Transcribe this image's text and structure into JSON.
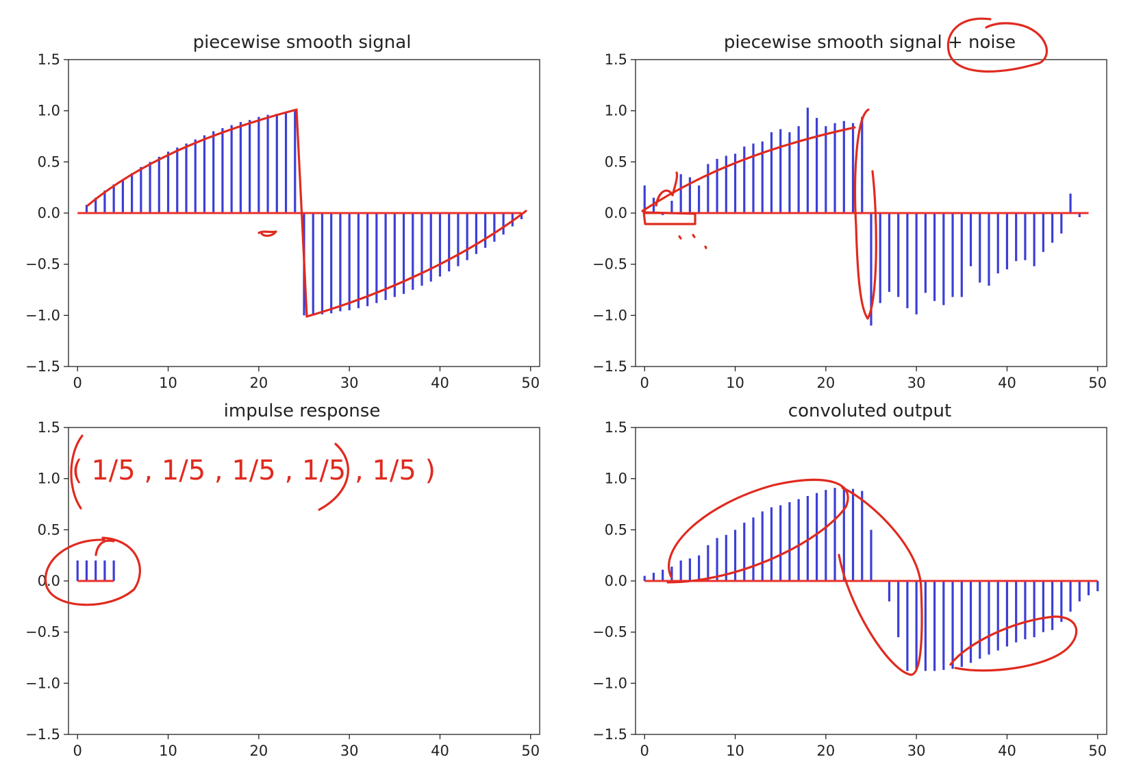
{
  "chart_data": [
    {
      "type": "stem",
      "title": "piecewise smooth signal",
      "xlim": [
        0,
        50
      ],
      "ylim": [
        -1.5,
        1.5
      ],
      "xticks": [
        0,
        10,
        20,
        30,
        40,
        50
      ],
      "yticks": [
        1.5,
        1.0,
        0.5,
        0.0,
        -0.5,
        -1.0,
        -1.5
      ],
      "ytick_labels": [
        "1.5",
        "1.0",
        "0.5",
        "0.0",
        "−0.5",
        "−1.0",
        "−1.5"
      ],
      "x": [
        0,
        1,
        2,
        3,
        4,
        5,
        6,
        7,
        8,
        9,
        10,
        11,
        12,
        13,
        14,
        15,
        16,
        17,
        18,
        19,
        20,
        21,
        22,
        23,
        24,
        25,
        26,
        27,
        28,
        29,
        30,
        31,
        32,
        33,
        34,
        35,
        36,
        37,
        38,
        39,
        40,
        41,
        42,
        43,
        44,
        45,
        46,
        47,
        48,
        49
      ],
      "values": [
        0.0,
        0.08,
        0.15,
        0.22,
        0.28,
        0.33,
        0.39,
        0.45,
        0.5,
        0.55,
        0.6,
        0.64,
        0.68,
        0.72,
        0.76,
        0.8,
        0.83,
        0.86,
        0.89,
        0.91,
        0.94,
        0.96,
        0.97,
        0.99,
        1.0,
        -1.0,
        -1.0,
        -0.99,
        -0.98,
        -0.96,
        -0.95,
        -0.93,
        -0.91,
        -0.88,
        -0.85,
        -0.82,
        -0.79,
        -0.75,
        -0.71,
        -0.67,
        -0.62,
        -0.57,
        -0.52,
        -0.46,
        -0.4,
        -0.34,
        -0.28,
        -0.21,
        -0.13,
        -0.06
      ],
      "annotations": []
    },
    {
      "type": "stem",
      "title": "piecewise smooth signal + noise",
      "xlim": [
        0,
        50
      ],
      "ylim": [
        -1.5,
        1.5
      ],
      "xticks": [
        0,
        10,
        20,
        30,
        40,
        50
      ],
      "yticks": [
        1.5,
        1.0,
        0.5,
        0.0,
        -0.5,
        -1.0,
        -1.5
      ],
      "ytick_labels": [
        "1.5",
        "1.0",
        "0.5",
        "0.0",
        "−0.5",
        "−1.0",
        "−1.5"
      ],
      "x": [
        0,
        1,
        2,
        3,
        4,
        5,
        6,
        7,
        8,
        9,
        10,
        11,
        12,
        13,
        14,
        15,
        16,
        17,
        18,
        19,
        20,
        21,
        22,
        23,
        24,
        25,
        26,
        27,
        28,
        29,
        30,
        31,
        32,
        33,
        34,
        35,
        36,
        37,
        38,
        39,
        40,
        41,
        42,
        43,
        44,
        45,
        46,
        47,
        48,
        49
      ],
      "values": [
        0.27,
        0.15,
        -0.02,
        0.12,
        0.38,
        0.35,
        0.27,
        0.48,
        0.53,
        0.56,
        0.58,
        0.65,
        0.68,
        0.7,
        0.79,
        0.82,
        0.79,
        0.85,
        1.03,
        0.93,
        0.85,
        0.88,
        0.9,
        0.88,
        0.94,
        -1.1,
        -0.88,
        -0.77,
        -0.82,
        -0.93,
        -0.99,
        -0.78,
        -0.86,
        -0.9,
        -0.82,
        -0.82,
        -0.52,
        -0.68,
        -0.71,
        -0.59,
        -0.55,
        -0.47,
        -0.46,
        -0.52,
        -0.38,
        -0.29,
        -0.2,
        0.19,
        -0.04,
        0.0
      ],
      "annotations": []
    },
    {
      "type": "stem",
      "title": "impulse response",
      "xlim": [
        0,
        50
      ],
      "ylim": [
        -1.5,
        1.5
      ],
      "xticks": [
        0,
        10,
        20,
        30,
        40,
        50
      ],
      "yticks": [
        1.5,
        1.0,
        0.5,
        0.0,
        -0.5,
        -1.0,
        -1.5
      ],
      "ytick_labels": [
        "1.5",
        "1.0",
        "0.5",
        "0.0",
        "−0.5",
        "−1.0",
        "−1.5"
      ],
      "x": [
        0,
        1,
        2,
        3,
        4
      ],
      "values": [
        0.2,
        0.2,
        0.2,
        0.2,
        0.2
      ],
      "annotations": [
        "( 1/5 , 1/5 , 1/5 , 1/5 , 1/5 )"
      ]
    },
    {
      "type": "stem",
      "title": "convoluted output",
      "xlim": [
        0,
        50
      ],
      "ylim": [
        -1.5,
        1.5
      ],
      "xticks": [
        0,
        10,
        20,
        30,
        40,
        50
      ],
      "yticks": [
        1.5,
        1.0,
        0.5,
        0.0,
        -0.5,
        -1.0,
        -1.5
      ],
      "ytick_labels": [
        "1.5",
        "1.0",
        "0.5",
        "0.0",
        "−0.5",
        "−1.0",
        "−1.5"
      ],
      "x": [
        0,
        1,
        2,
        3,
        4,
        5,
        6,
        7,
        8,
        9,
        10,
        11,
        12,
        13,
        14,
        15,
        16,
        17,
        18,
        19,
        20,
        21,
        22,
        23,
        24,
        25,
        26,
        27,
        28,
        29,
        30,
        31,
        32,
        33,
        34,
        35,
        36,
        37,
        38,
        39,
        40,
        41,
        42,
        43,
        44,
        45,
        46,
        47,
        48,
        49,
        50
      ],
      "values": [
        0.05,
        0.08,
        0.11,
        0.14,
        0.2,
        0.22,
        0.25,
        0.35,
        0.42,
        0.45,
        0.5,
        0.57,
        0.62,
        0.68,
        0.72,
        0.74,
        0.77,
        0.8,
        0.83,
        0.86,
        0.89,
        0.91,
        0.92,
        0.9,
        0.88,
        0.5,
        0.0,
        -0.2,
        -0.55,
        -0.88,
        -0.86,
        -0.88,
        -0.88,
        -0.87,
        -0.86,
        -0.84,
        -0.8,
        -0.76,
        -0.72,
        -0.68,
        -0.64,
        -0.6,
        -0.57,
        -0.55,
        -0.5,
        -0.48,
        -0.4,
        -0.3,
        -0.2,
        -0.14,
        -0.1
      ],
      "annotations": []
    }
  ],
  "colors": {
    "stem": "#3b3fd6",
    "baseline": "#e8322b",
    "ink": "#e02a1f",
    "axis": "#222222"
  }
}
